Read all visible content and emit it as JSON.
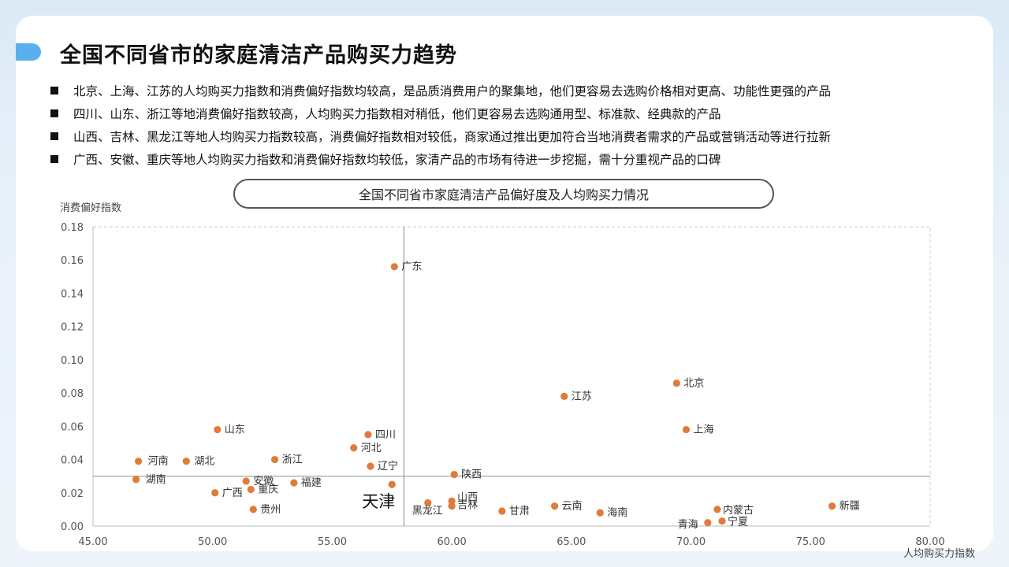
{
  "page": {
    "title": "全国不同省市的家庭清洁产品购买力趋势",
    "bullets": [
      "北京、上海、江苏的人均购买力指数和消费偏好指数均较高，是品质消费用户的聚集地，他们更容易去选购价格相对更高、功能性更强的产品",
      "四川、山东、浙江等地消费偏好指数较高，人均购买力指数相对稍低，他们更容易去选购通用型、标准款、经典款的产品",
      "山西、吉林、黑龙江等地人均购买力指数较高，消费偏好指数相对较低，商家通过推出更加符合当地消费者需求的产品或营销活动等进行拉新",
      "广西、安徽、重庆等地人均购买力指数和消费偏好指数均较低，家清产品的市场有待进一步挖掘，需十分重视产品的口碑"
    ]
  },
  "colors": {
    "accent": "#5ab0ee",
    "point": "#e07b39",
    "quadrant_line": "#9a9a9a",
    "grid_border": "#cfcfcf"
  },
  "chart_data": {
    "type": "scatter",
    "title": "全国不同省市家庭清洁产品偏好度及人均购买力情况",
    "xlabel": "人均购买力指数",
    "ylabel": "消费偏好指数",
    "xlim": [
      45,
      80
    ],
    "ylim": [
      0,
      0.18
    ],
    "x_ticks": [
      "45.00",
      "50.00",
      "55.00",
      "60.00",
      "65.00",
      "70.00",
      "75.00",
      "80.00"
    ],
    "y_ticks": [
      "0.00",
      "0.02",
      "0.04",
      "0.06",
      "0.08",
      "0.10",
      "0.12",
      "0.14",
      "0.16",
      "0.18"
    ],
    "reference_lines": {
      "x": 58,
      "y": 0.03
    },
    "points": [
      {
        "name": "广东",
        "x": 57.6,
        "y": 0.156
      },
      {
        "name": "北京",
        "x": 69.4,
        "y": 0.086
      },
      {
        "name": "江苏",
        "x": 64.7,
        "y": 0.078
      },
      {
        "name": "上海",
        "x": 69.8,
        "y": 0.058
      },
      {
        "name": "山东",
        "x": 50.2,
        "y": 0.058
      },
      {
        "name": "四川",
        "x": 56.5,
        "y": 0.055
      },
      {
        "name": "河北",
        "x": 55.9,
        "y": 0.047
      },
      {
        "name": "浙江",
        "x": 52.6,
        "y": 0.04
      },
      {
        "name": "河南",
        "x": 46.9,
        "y": 0.039
      },
      {
        "name": "湖北",
        "x": 48.9,
        "y": 0.039
      },
      {
        "name": "辽宁",
        "x": 56.6,
        "y": 0.036
      },
      {
        "name": "陕西",
        "x": 60.1,
        "y": 0.031
      },
      {
        "name": "湖南",
        "x": 46.8,
        "y": 0.028
      },
      {
        "name": "安徽",
        "x": 51.4,
        "y": 0.027
      },
      {
        "name": "福建",
        "x": 53.4,
        "y": 0.026
      },
      {
        "name": "天津",
        "x": 57.5,
        "y": 0.025
      },
      {
        "name": "重庆",
        "x": 51.6,
        "y": 0.022
      },
      {
        "name": "广西",
        "x": 50.1,
        "y": 0.02
      },
      {
        "name": "山西",
        "x": 60.0,
        "y": 0.015
      },
      {
        "name": "黑龙江",
        "x": 59.0,
        "y": 0.014
      },
      {
        "name": "吉林",
        "x": 60.0,
        "y": 0.012
      },
      {
        "name": "云南",
        "x": 64.3,
        "y": 0.012
      },
      {
        "name": "新疆",
        "x": 75.9,
        "y": 0.012
      },
      {
        "name": "贵州",
        "x": 51.7,
        "y": 0.01
      },
      {
        "name": "内蒙古",
        "x": 71.1,
        "y": 0.01
      },
      {
        "name": "甘肃",
        "x": 62.1,
        "y": 0.009
      },
      {
        "name": "海南",
        "x": 66.2,
        "y": 0.008
      },
      {
        "name": "宁夏",
        "x": 71.3,
        "y": 0.003
      },
      {
        "name": "青海",
        "x": 70.7,
        "y": 0.002
      }
    ]
  }
}
